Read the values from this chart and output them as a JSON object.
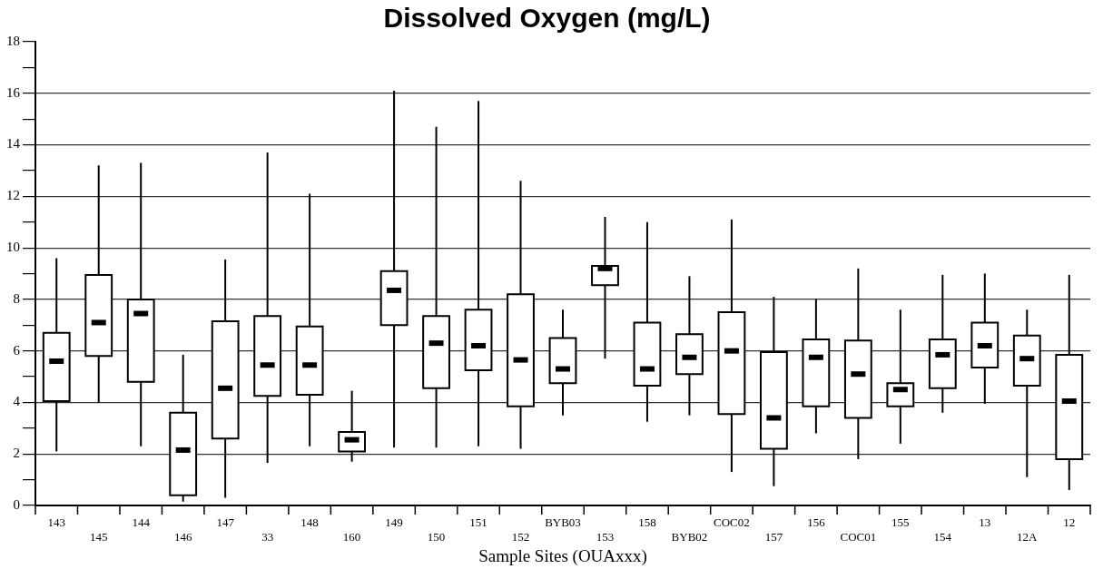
{
  "chart_data": {
    "type": "box",
    "title": "Dissolved Oxygen (mg/L)",
    "xlabel": "Sample Sites (OUAxxx)",
    "categories": [
      "143",
      "145",
      "144",
      "146",
      "147",
      "33",
      "148",
      "160",
      "149",
      "150",
      "151",
      "152",
      "BYB03",
      "153",
      "158",
      "BYB02",
      "COC02",
      "157",
      "156",
      "COC01",
      "155",
      "154",
      "13",
      "12A",
      "12"
    ],
    "boxes": [
      {
        "low": 2.1,
        "q1": 4.05,
        "median": 5.6,
        "q3": 6.7,
        "high": 9.6
      },
      {
        "low": 4.0,
        "q1": 5.8,
        "median": 7.1,
        "q3": 8.95,
        "high": 13.2
      },
      {
        "low": 2.3,
        "q1": 4.8,
        "median": 7.45,
        "q3": 8.0,
        "high": 13.3
      },
      {
        "low": 0.15,
        "q1": 0.4,
        "median": 2.15,
        "q3": 3.6,
        "high": 5.85
      },
      {
        "low": 0.3,
        "q1": 2.6,
        "median": 4.55,
        "q3": 7.15,
        "high": 9.55
      },
      {
        "low": 1.65,
        "q1": 4.25,
        "median": 5.45,
        "q3": 7.35,
        "high": 13.7
      },
      {
        "low": 2.3,
        "q1": 4.3,
        "median": 5.45,
        "q3": 6.95,
        "high": 12.1
      },
      {
        "low": 1.7,
        "q1": 2.1,
        "median": 2.55,
        "q3": 2.85,
        "high": 4.45
      },
      {
        "low": 2.25,
        "q1": 7.0,
        "median": 8.35,
        "q3": 9.1,
        "high": 16.1
      },
      {
        "low": 2.25,
        "q1": 4.55,
        "median": 6.3,
        "q3": 7.35,
        "high": 14.7
      },
      {
        "low": 2.3,
        "q1": 5.25,
        "median": 6.2,
        "q3": 7.6,
        "high": 15.7
      },
      {
        "low": 2.2,
        "q1": 3.85,
        "median": 5.65,
        "q3": 8.2,
        "high": 12.6
      },
      {
        "low": 3.5,
        "q1": 4.75,
        "median": 5.3,
        "q3": 6.5,
        "high": 7.6
      },
      {
        "low": 5.7,
        "q1": 8.55,
        "median": 9.2,
        "q3": 9.3,
        "high": 11.2
      },
      {
        "low": 3.25,
        "q1": 4.65,
        "median": 5.3,
        "q3": 7.1,
        "high": 11.0
      },
      {
        "low": 3.5,
        "q1": 5.1,
        "median": 5.75,
        "q3": 6.65,
        "high": 8.9
      },
      {
        "low": 1.3,
        "q1": 3.55,
        "median": 6.0,
        "q3": 7.5,
        "high": 11.1
      },
      {
        "low": 0.75,
        "q1": 2.2,
        "median": 3.4,
        "q3": 5.95,
        "high": 8.1
      },
      {
        "low": 2.8,
        "q1": 3.85,
        "median": 5.75,
        "q3": 6.45,
        "high": 8.0
      },
      {
        "low": 1.8,
        "q1": 3.4,
        "median": 5.1,
        "q3": 6.4,
        "high": 9.2
      },
      {
        "low": 2.4,
        "q1": 3.85,
        "median": 4.5,
        "q3": 4.75,
        "high": 7.6
      },
      {
        "low": 3.6,
        "q1": 4.55,
        "median": 5.85,
        "q3": 6.45,
        "high": 8.95
      },
      {
        "low": 3.95,
        "q1": 5.35,
        "median": 6.2,
        "q3": 7.1,
        "high": 9.0
      },
      {
        "low": 1.1,
        "q1": 4.65,
        "median": 5.7,
        "q3": 6.6,
        "high": 7.6
      },
      {
        "low": 0.6,
        "q1": 1.8,
        "median": 4.05,
        "q3": 5.85,
        "high": 8.95
      }
    ],
    "ylim": [
      0,
      18
    ],
    "yticks": [
      0,
      {
        "value": 1,
        "label": null
      },
      2,
      {
        "value": 3,
        "label": null
      },
      4,
      {
        "value": 5,
        "label": null
      },
      6,
      {
        "value": 7,
        "label": null
      },
      8,
      {
        "value": 9,
        "label": null
      },
      10,
      {
        "value": 11,
        "label": null
      },
      12,
      {
        "value": 13,
        "label": null
      },
      14,
      {
        "value": 15,
        "label": null
      },
      16,
      {
        "value": 17,
        "label": null
      },
      18
    ],
    "grid": "y"
  }
}
